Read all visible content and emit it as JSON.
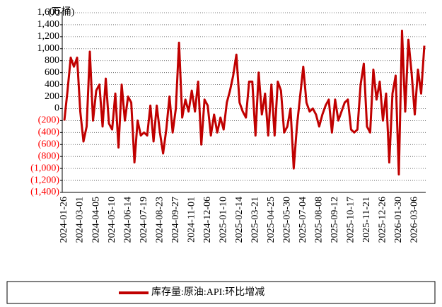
{
  "chart_data": {
    "type": "line",
    "y_unit": "(万桶)",
    "categories": [
      "2024-01-26",
      null,
      null,
      null,
      null,
      "2024-03-01",
      null,
      null,
      null,
      null,
      "2024-04-05",
      null,
      null,
      null,
      null,
      "2024-05-10",
      null,
      null,
      null,
      null,
      "2024-06-14",
      null,
      null,
      null,
      null,
      "2024-07-19",
      null,
      null,
      null,
      null,
      "2024-08-23",
      null,
      null,
      null,
      null,
      "2024-09-27",
      null,
      null,
      null,
      null,
      "2024-11-01",
      null,
      null,
      null,
      null,
      "2024-12-06",
      null,
      null,
      null,
      null,
      "2025-01-10",
      null,
      null,
      null,
      null,
      "2025-02-14",
      null,
      null,
      null,
      null,
      "2025-03-21",
      null,
      null,
      null,
      null,
      "2025-04-25",
      null,
      null,
      null,
      null,
      "2025-05-30",
      null,
      null,
      null,
      null,
      "2025-07-04",
      null,
      null,
      null,
      null,
      "2025-08-08",
      null,
      null,
      null,
      null,
      "2025-09-12",
      null,
      null,
      null,
      null,
      "2025-10-17",
      null,
      null,
      null,
      null,
      "2025-11-21",
      null,
      null,
      null,
      null,
      "2025-12-26",
      null,
      null,
      null,
      null,
      "2026-01-30",
      null,
      null,
      null,
      null,
      "2026-03-06",
      null,
      null,
      null
    ],
    "series": [
      {
        "name": "库存量:原油:API:环比增减",
        "color": "#c00000",
        "values": [
          -200,
          300,
          850,
          700,
          850,
          -50,
          -550,
          -300,
          950,
          -200,
          300,
          400,
          -300,
          500,
          -250,
          -350,
          250,
          -650,
          400,
          -200,
          200,
          100,
          -900,
          -200,
          -450,
          -400,
          -450,
          50,
          -550,
          50,
          -400,
          -750,
          -350,
          200,
          -400,
          0,
          1100,
          -150,
          150,
          -50,
          300,
          -50,
          450,
          -600,
          150,
          50,
          -450,
          -100,
          -400,
          -150,
          -350,
          100,
          300,
          550,
          900,
          100,
          -50,
          -150,
          450,
          450,
          -450,
          600,
          -100,
          250,
          -450,
          400,
          -450,
          450,
          300,
          -400,
          -300,
          0,
          -1000,
          -300,
          200,
          700,
          100,
          -50,
          0,
          -100,
          -300,
          -100,
          50,
          150,
          -400,
          150,
          -200,
          -50,
          100,
          150,
          -350,
          -400,
          -350,
          400,
          750,
          -300,
          -400,
          650,
          150,
          450,
          -200,
          250,
          -900,
          250,
          550,
          -1100,
          1300,
          -50,
          1150,
          600,
          -100,
          650,
          250,
          1050
        ]
      }
    ],
    "ylim": [
      -1400,
      1600
    ],
    "yticks": [
      {
        "value": -1400,
        "label": "(1,400)"
      },
      {
        "value": -1200,
        "label": "(1,200)"
      },
      {
        "value": -1000,
        "label": "(1,000)"
      },
      {
        "value": -800,
        "label": "(800)"
      },
      {
        "value": -600,
        "label": "(600)"
      },
      {
        "value": -400,
        "label": "(400)"
      },
      {
        "value": -200,
        "label": "(200)"
      },
      0,
      200,
      400,
      600,
      800,
      {
        "value": 1000,
        "label": "1,000"
      },
      {
        "value": 1200,
        "label": "1,200"
      },
      {
        "value": 1400,
        "label": "1,400"
      },
      {
        "value": 1600,
        "label": "1,600"
      }
    ],
    "negative_label_color": "#ff0000",
    "grid": true,
    "legend": "bottom"
  }
}
